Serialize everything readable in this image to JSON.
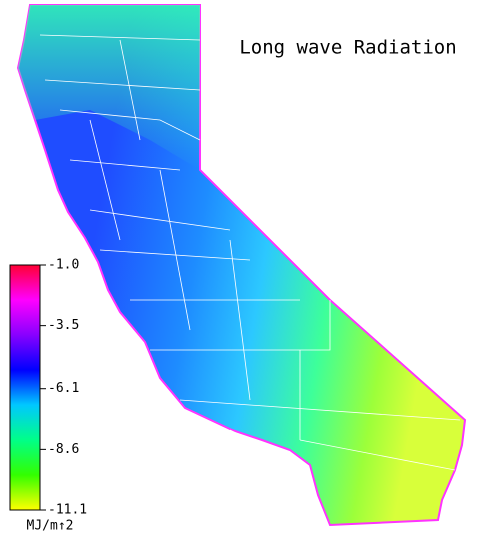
{
  "chart_data": {
    "type": "map",
    "title": "Long wave Radiation",
    "colorbar": {
      "label": "MJ/m↑2",
      "clim": [
        -11.1,
        -1
      ],
      "ticks": [
        {
          "value": -1,
          "label": "-1.0"
        },
        -3.5,
        -6.1,
        -8.6,
        -11.1
      ],
      "colors": [
        "#ff0033",
        "#ff00ff",
        "#8800ff",
        "#0000ff",
        "#00c8ff",
        "#00ff88",
        "#33ff00",
        "#ffff00"
      ]
    }
  }
}
